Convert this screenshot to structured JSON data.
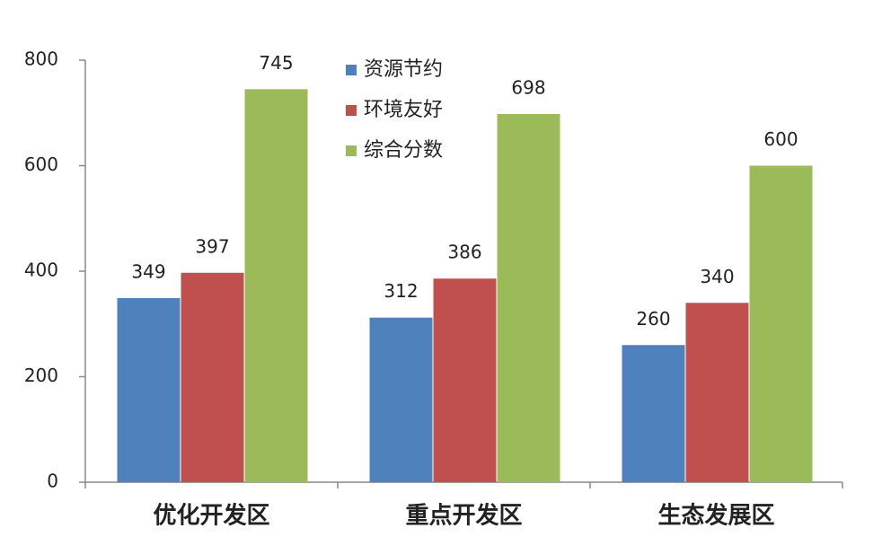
{
  "chart_data": {
    "type": "bar",
    "categories": [
      "优化开发区",
      "重点开发区",
      "生态发展区"
    ],
    "series": [
      {
        "name": "资源节约",
        "color": "#4f81bd",
        "values": [
          349,
          312,
          260
        ]
      },
      {
        "name": "环境友好",
        "color": "#c0504d",
        "values": [
          397,
          386,
          340
        ]
      },
      {
        "name": "综合分数",
        "color": "#9bbb59",
        "values": [
          745,
          698,
          600
        ]
      }
    ],
    "ylim": [
      0,
      800
    ],
    "yticks": [
      0,
      200,
      400,
      600,
      800
    ],
    "legend": "top-center"
  }
}
